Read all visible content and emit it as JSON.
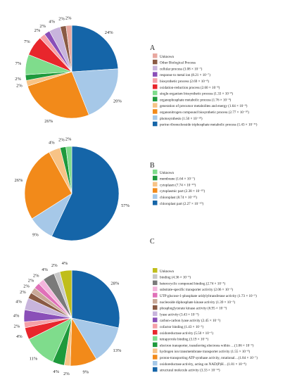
{
  "chart_data": [
    {
      "type": "pie",
      "panel_label": "A",
      "title": "",
      "slices": [
        {
          "label": "purine ribonucleoside triphosphate metabolic process (1.43 × 10⁻¹¹)",
          "value": 24,
          "pct_label": "24%",
          "color": "#1565a8"
        },
        {
          "label": "photosynthesis (1.50 × 10⁻¹⁰)",
          "value": 20,
          "pct_label": "20%",
          "color": "#a6c8e8"
        },
        {
          "label": "organonitrogen compound biosynthetic process (2.77 × 10⁻¹⁰)",
          "value": 26,
          "pct_label": "26%",
          "color": "#f28a1a"
        },
        {
          "label": "generation of precursor metabolites and energy (1.64 × 10⁻⁹)",
          "value": 2,
          "pct_label": "2%",
          "color": "#f7c386"
        },
        {
          "label": "organophosphate metabolic process (1.76 × 10⁻⁹)",
          "value": 2,
          "pct_label": "2%",
          "color": "#1e9a3c"
        },
        {
          "label": "single-organism biosynthetic process (1.33 × 10⁻⁸)",
          "value": 7,
          "pct_label": "7%",
          "color": "#7fdc8c"
        },
        {
          "label": "oxidation-reduction process (2.60 × 10⁻⁸)",
          "value": 7,
          "pct_label": "7%",
          "color": "#e8262c"
        },
        {
          "label": "biosynthetic process (2.69 × 10⁻⁸)",
          "value": 2,
          "pct_label": "2%",
          "color": "#f5a0a8"
        },
        {
          "label": "response to metal ion (8.21 × 10⁻⁷)",
          "value": 2,
          "pct_label": "2%",
          "color": "#8a4fb8"
        },
        {
          "label": "cellular process (3.08 × 10⁻⁷)",
          "value": 4,
          "pct_label": "4%",
          "color": "#c8b4dc"
        },
        {
          "label": "Other Biological Process",
          "value": 2,
          "pct_label": "2%",
          "color": "#8a5a44"
        },
        {
          "label": "Unknown",
          "value": 2,
          "pct_label": "2%",
          "color": "#e8a8a0"
        }
      ]
    },
    {
      "type": "pie",
      "panel_label": "B",
      "title": "",
      "slices": [
        {
          "label": "chloroplast part (2.27 × 10⁻¹⁰)",
          "value": 57,
          "pct_label": "57%",
          "color": "#1565a8"
        },
        {
          "label": "chloroplast (8.74 × 10⁻¹⁰)",
          "value": 9,
          "pct_label": "9%",
          "color": "#a6c8e8"
        },
        {
          "label": "cytoplasmic part (2.38 × 10⁻¹⁰)",
          "value": 26,
          "pct_label": "26%",
          "color": "#f28a1a"
        },
        {
          "label": "cytoplasm (7.74 × 10⁻¹⁰)",
          "value": 4,
          "pct_label": "4%",
          "color": "#f7c386"
        },
        {
          "label": "membrane (1.64 × 10⁻⁷)",
          "value": 2,
          "pct_label": "2%",
          "color": "#1e9a3c"
        },
        {
          "label": "Unknown",
          "value": 2,
          "pct_label": "2%",
          "color": "#7fdc8c"
        }
      ]
    },
    {
      "type": "pie",
      "panel_label": "C",
      "title": "",
      "slices": [
        {
          "label": "structural molecule activity (3.33 × 10⁻¹²)",
          "value": 28,
          "pct_label": "28%",
          "color": "#1565a8"
        },
        {
          "label": "oxidoreductase activity, acting on NAD(P)H…(1.81 × 10⁻⁸)",
          "value": 13,
          "pct_label": "13%",
          "color": "#a6c8e8"
        },
        {
          "label": "proton-transporting ATP synthase activity, rotational…(1.84 × 10⁻⁷)",
          "value": 9,
          "pct_label": "9%",
          "color": "#f28a1a"
        },
        {
          "label": "hydrogen ion transmembrane transporter activity (1.55 × 10⁻⁸)",
          "value": 2,
          "pct_label": "2%",
          "color": "#f7c386"
        },
        {
          "label": "electron transporter, transferring electrons within …(1.06 × 10⁻⁶)",
          "value": 4,
          "pct_label": "4%",
          "color": "#1e9a3c"
        },
        {
          "label": "tetrapyrrole binding (3.19 × 10⁻⁶)",
          "value": 11,
          "pct_label": "11%",
          "color": "#7fdc8c"
        },
        {
          "label": "oxidoreductase activity (5.50 × 10⁻⁶)",
          "value": 4,
          "pct_label": "4%",
          "color": "#e8262c"
        },
        {
          "label": "cofactor binding (1.43 × 10⁻⁵)",
          "value": 2,
          "pct_label": "2%",
          "color": "#f5a0a8"
        },
        {
          "label": "carbon-carbon lyase activity (2.45 × 10⁻⁵)",
          "value": 4,
          "pct_label": "4%",
          "color": "#8a4fb8"
        },
        {
          "label": "lyase activity (3.43 × 10⁻⁵)",
          "value": 4,
          "pct_label": "4%",
          "color": "#c8b4dc"
        },
        {
          "label": "phosphoglycerate kinase activity (6.95 × 10⁻⁵)",
          "value": 2,
          "pct_label": "2%",
          "color": "#8a5a44"
        },
        {
          "label": "nucleoside diphosphate kinase activity (1.39 × 10⁻⁵)",
          "value": 2,
          "pct_label": "2%",
          "color": "#c9a898"
        },
        {
          "label": "UTP:glucose-1-phosphate uridylyltransferase activity (1.73 × 10⁻⁵)",
          "value": 2,
          "pct_label": "2%",
          "color": "#e070b8"
        },
        {
          "label": "substrate-specific transporter activity (2.06 × 10⁻⁵)",
          "value": 2,
          "pct_label": "2%",
          "color": "#f4b4dc"
        },
        {
          "label": "heterocyclic compound binding (2.74 × 10⁻⁵)",
          "value": 4,
          "pct_label": "4%",
          "color": "#7a7a7a"
        },
        {
          "label": "binding (4.36 × 10⁻⁵)",
          "value": 2,
          "pct_label": "2%",
          "color": "#c8c8c8"
        },
        {
          "label": "Unknown",
          "value": 4,
          "pct_label": "4%",
          "color": "#c0be1a"
        }
      ]
    }
  ]
}
